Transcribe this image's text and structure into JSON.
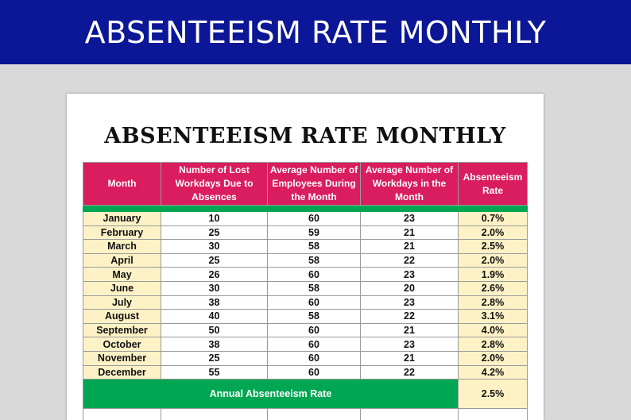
{
  "banner": {
    "title": "ABSENTEEISM RATE MONTHLY"
  },
  "sheet": {
    "title": "ABSENTEEISM RATE  MONTHLY"
  },
  "table": {
    "headers": [
      "Month",
      "Number of Lost Workdays Due to Absences",
      "Average Number of Employees During the Month",
      "Average Number of Workdays in the Month",
      "Absenteeism Rate"
    ],
    "rows": [
      {
        "month": "January",
        "lost": "10",
        "employees": "60",
        "workdays": "23",
        "rate": "0.7%"
      },
      {
        "month": "February",
        "lost": "25",
        "employees": "59",
        "workdays": "21",
        "rate": "2.0%"
      },
      {
        "month": "March",
        "lost": "30",
        "employees": "58",
        "workdays": "21",
        "rate": "2.5%"
      },
      {
        "month": "April",
        "lost": "25",
        "employees": "58",
        "workdays": "22",
        "rate": "2.0%"
      },
      {
        "month": "May",
        "lost": "26",
        "employees": "60",
        "workdays": "23",
        "rate": "1.9%"
      },
      {
        "month": "June",
        "lost": "30",
        "employees": "58",
        "workdays": "20",
        "rate": "2.6%"
      },
      {
        "month": "July",
        "lost": "38",
        "employees": "60",
        "workdays": "23",
        "rate": "2.8%"
      },
      {
        "month": "August",
        "lost": "40",
        "employees": "58",
        "workdays": "22",
        "rate": "3.1%"
      },
      {
        "month": "September",
        "lost": "50",
        "employees": "60",
        "workdays": "21",
        "rate": "4.0%"
      },
      {
        "month": "October",
        "lost": "38",
        "employees": "60",
        "workdays": "23",
        "rate": "2.8%"
      },
      {
        "month": "November",
        "lost": "25",
        "employees": "60",
        "workdays": "21",
        "rate": "2.0%"
      },
      {
        "month": "December",
        "lost": "55",
        "employees": "60",
        "workdays": "22",
        "rate": "4.2%"
      }
    ],
    "annual": {
      "label": "Annual Absenteeism Rate",
      "value": "2.5%"
    }
  },
  "colors": {
    "banner": "#0b1796",
    "header": "#d91d5e",
    "accent_green": "#00a651",
    "highlight_cells": "#fdf2c6",
    "background": "#d9d9d9"
  }
}
